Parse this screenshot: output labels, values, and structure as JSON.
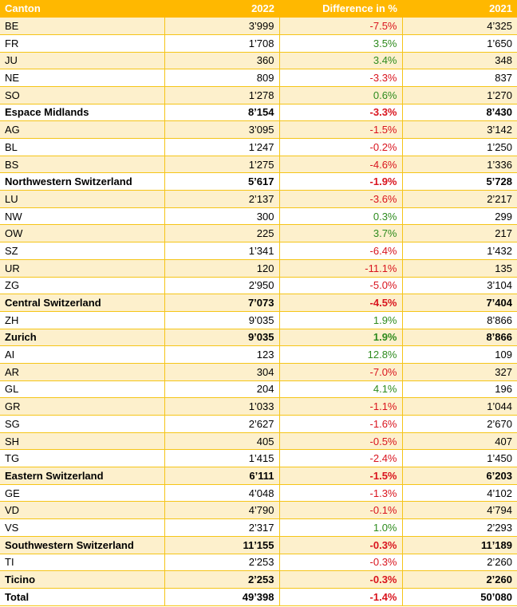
{
  "headers": {
    "canton": "Canton",
    "y2022": "2022",
    "diff": "Difference in %",
    "y2021": "2021"
  },
  "colors": {
    "header_bg": "#ffb800",
    "band": "#fdf0cc",
    "negative": "#d9141e",
    "positive": "#2e8b1e"
  },
  "rows": [
    {
      "canton": "BE",
      "y2022": "3’999",
      "diff": "-7.5%",
      "y2021": "4’325",
      "bold": false
    },
    {
      "canton": "FR",
      "y2022": "1’708",
      "diff": "3.5%",
      "y2021": "1’650",
      "bold": false
    },
    {
      "canton": "JU",
      "y2022": "360",
      "diff": "3.4%",
      "y2021": "348",
      "bold": false
    },
    {
      "canton": "NE",
      "y2022": "809",
      "diff": "-3.3%",
      "y2021": "837",
      "bold": false
    },
    {
      "canton": "SO",
      "y2022": "1’278",
      "diff": "0.6%",
      "y2021": "1’270",
      "bold": false
    },
    {
      "canton": "Espace Midlands",
      "y2022": "8’154",
      "diff": "-3.3%",
      "y2021": "8’430",
      "bold": true
    },
    {
      "canton": "AG",
      "y2022": "3’095",
      "diff": "-1.5%",
      "y2021": "3’142",
      "bold": false
    },
    {
      "canton": "BL",
      "y2022": "1’247",
      "diff": "-0.2%",
      "y2021": "1’250",
      "bold": false
    },
    {
      "canton": "BS",
      "y2022": "1’275",
      "diff": "-4.6%",
      "y2021": "1’336",
      "bold": false
    },
    {
      "canton": "Northwestern Switzerland",
      "y2022": "5’617",
      "diff": "-1.9%",
      "y2021": "5’728",
      "bold": true
    },
    {
      "canton": "LU",
      "y2022": "2’137",
      "diff": "-3.6%",
      "y2021": "2’217",
      "bold": false
    },
    {
      "canton": "NW",
      "y2022": "300",
      "diff": "0.3%",
      "y2021": "299",
      "bold": false
    },
    {
      "canton": "OW",
      "y2022": "225",
      "diff": "3.7%",
      "y2021": "217",
      "bold": false
    },
    {
      "canton": "SZ",
      "y2022": "1’341",
      "diff": "-6.4%",
      "y2021": "1’432",
      "bold": false
    },
    {
      "canton": "UR",
      "y2022": "120",
      "diff": "-11.1%",
      "y2021": "135",
      "bold": false
    },
    {
      "canton": "ZG",
      "y2022": "2’950",
      "diff": "-5.0%",
      "y2021": "3’104",
      "bold": false
    },
    {
      "canton": "Central Switzerland",
      "y2022": "7’073",
      "diff": "-4.5%",
      "y2021": "7’404",
      "bold": true
    },
    {
      "canton": "ZH",
      "y2022": "9’035",
      "diff": "1.9%",
      "y2021": "8’866",
      "bold": false
    },
    {
      "canton": "Zurich",
      "y2022": "9’035",
      "diff": "1.9%",
      "y2021": "8’866",
      "bold": true
    },
    {
      "canton": "AI",
      "y2022": "123",
      "diff": "12.8%",
      "y2021": "109",
      "bold": false
    },
    {
      "canton": "AR",
      "y2022": "304",
      "diff": "-7.0%",
      "y2021": "327",
      "bold": false
    },
    {
      "canton": "GL",
      "y2022": "204",
      "diff": "4.1%",
      "y2021": "196",
      "bold": false
    },
    {
      "canton": "GR",
      "y2022": "1’033",
      "diff": "-1.1%",
      "y2021": "1’044",
      "bold": false
    },
    {
      "canton": "SG",
      "y2022": "2’627",
      "diff": "-1.6%",
      "y2021": "2’670",
      "bold": false
    },
    {
      "canton": "SH",
      "y2022": "405",
      "diff": "-0.5%",
      "y2021": "407",
      "bold": false
    },
    {
      "canton": "TG",
      "y2022": "1’415",
      "diff": "-2.4%",
      "y2021": "1’450",
      "bold": false
    },
    {
      "canton": "Eastern Switzerland",
      "y2022": "6’111",
      "diff": "-1.5%",
      "y2021": "6’203",
      "bold": true
    },
    {
      "canton": "GE",
      "y2022": "4’048",
      "diff": "-1.3%",
      "y2021": "4’102",
      "bold": false
    },
    {
      "canton": "VD",
      "y2022": "4’790",
      "diff": "-0.1%",
      "y2021": "4’794",
      "bold": false
    },
    {
      "canton": "VS",
      "y2022": "2’317",
      "diff": "1.0%",
      "y2021": "2’293",
      "bold": false
    },
    {
      "canton": "Southwestern Switzerland",
      "y2022": "11’155",
      "diff": "-0.3%",
      "y2021": "11’189",
      "bold": true
    },
    {
      "canton": "TI",
      "y2022": "2’253",
      "diff": "-0.3%",
      "y2021": "2’260",
      "bold": false
    },
    {
      "canton": "Ticino",
      "y2022": "2’253",
      "diff": "-0.3%",
      "y2021": "2’260",
      "bold": true
    },
    {
      "canton": "Total",
      "y2022": "49’398",
      "diff": "-1.4%",
      "y2021": "50’080",
      "bold": true
    }
  ]
}
